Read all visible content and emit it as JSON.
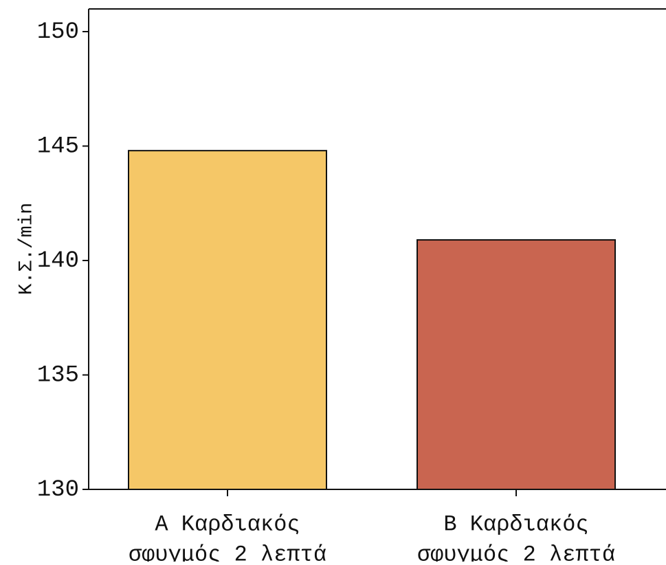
{
  "chart_data": {
    "type": "bar",
    "title": "",
    "xlabel": "",
    "ylabel": "Κ.Σ./min",
    "categories": [
      [
        "Α Καρδιακός",
        "σφυγμός 2 λεπτά"
      ],
      [
        "Β Καρδιακός",
        "σφυγμός 2 λεπτά"
      ]
    ],
    "values": [
      144.8,
      140.9
    ],
    "ylim": [
      130,
      150
    ],
    "yticks": [
      130,
      135,
      140,
      145,
      150
    ],
    "grid": false,
    "bar_colors": [
      "#f5c767",
      "#c96550"
    ],
    "axis_color": "#111111"
  }
}
